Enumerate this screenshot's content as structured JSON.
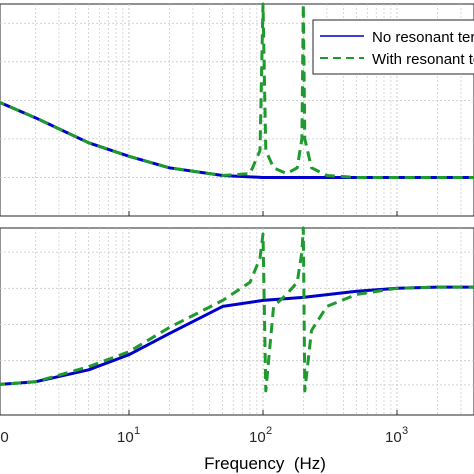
{
  "chart_data": [
    {
      "type": "line",
      "panel": "top",
      "xscale": "log",
      "xlim": [
        1,
        10000
      ],
      "grid": true,
      "legend_placement": "top-right",
      "series": [
        {
          "name": "No resonant term",
          "color": "#0000cc",
          "style": "solid",
          "x": [
            1,
            2,
            5,
            10,
            20,
            50,
            100,
            200,
            500,
            1000,
            2000,
            5000,
            10000
          ],
          "y": [
            0.0,
            -0.45,
            -1.1,
            -1.45,
            -1.75,
            -1.95,
            -2.0,
            -2.0,
            -2.0,
            -2.0,
            -2.0,
            -2.0,
            -2.0
          ]
        },
        {
          "name": "With resonant term",
          "color": "#1f9a2f",
          "style": "dashed",
          "x": [
            1,
            2,
            5,
            10,
            20,
            50,
            80,
            95,
            100,
            105,
            120,
            150,
            180,
            195,
            200,
            205,
            230,
            300,
            500,
            1000,
            2000,
            5000,
            10000
          ],
          "y": [
            0.0,
            -0.45,
            -1.1,
            -1.45,
            -1.75,
            -1.95,
            -1.9,
            -1.3,
            2.5,
            -1.3,
            -1.75,
            -1.9,
            -1.75,
            -1.0,
            2.5,
            -1.0,
            -1.75,
            -1.95,
            -2.0,
            -2.0,
            -2.0,
            -2.0,
            -2.0
          ]
        }
      ]
    },
    {
      "type": "line",
      "panel": "bottom",
      "xscale": "log",
      "xlim": [
        1,
        10000
      ],
      "grid": true,
      "xlabel": "Frequency  (Hz)",
      "xtick_labels": [
        "10",
        "1",
        "10",
        "2",
        "10",
        "3"
      ],
      "series": [
        {
          "name": "No resonant term",
          "color": "#0000cc",
          "style": "solid",
          "x": [
            1,
            2,
            5,
            10,
            20,
            50,
            100,
            200,
            500,
            1000,
            2000,
            5000,
            10000
          ],
          "y": [
            -1.0,
            -0.95,
            -0.75,
            -0.5,
            -0.15,
            0.3,
            0.4,
            0.45,
            0.55,
            0.6,
            0.62,
            0.62,
            0.62
          ]
        },
        {
          "name": "With resonant term",
          "color": "#1f9a2f",
          "style": "dashed",
          "x": [
            1,
            2,
            5,
            10,
            20,
            50,
            80,
            95,
            100,
            105,
            120,
            150,
            180,
            195,
            200,
            205,
            230,
            300,
            500,
            1000,
            2000,
            5000,
            10000
          ],
          "y": [
            -1.0,
            -0.95,
            -0.7,
            -0.45,
            -0.05,
            0.4,
            0.7,
            1.1,
            1.5,
            -1.1,
            0.3,
            0.5,
            0.7,
            1.2,
            1.6,
            -1.1,
            -0.1,
            0.3,
            0.5,
            0.6,
            0.62,
            0.62,
            0.62
          ]
        }
      ]
    }
  ]
}
